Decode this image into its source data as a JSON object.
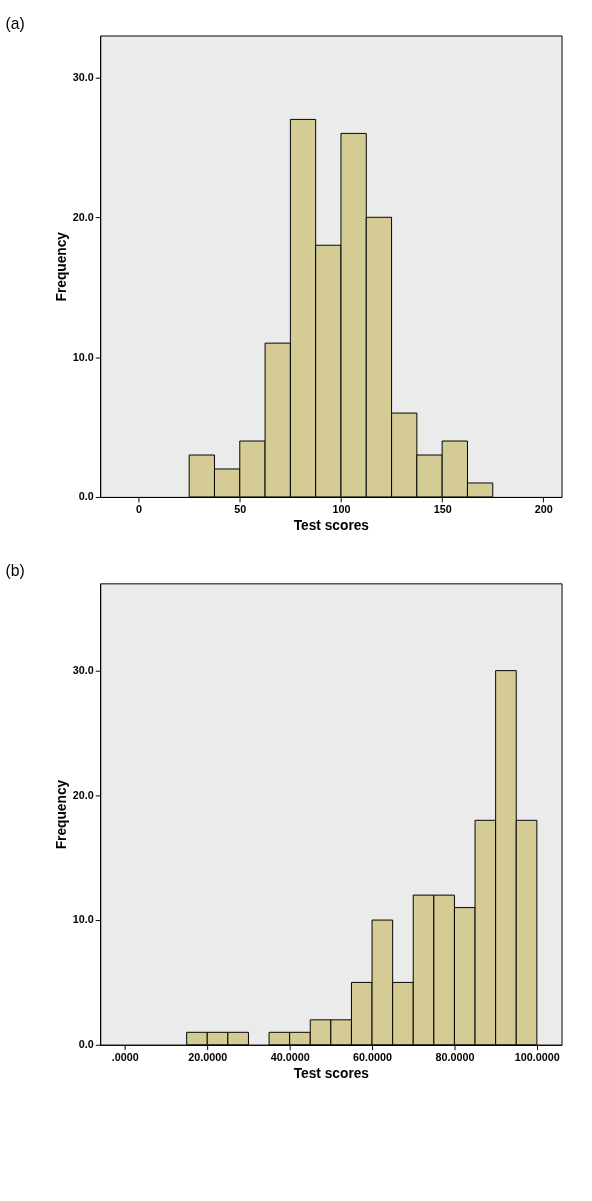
{
  "chart_data": [
    {
      "type": "histogram",
      "title": "(a)",
      "xlabel": "Test scores",
      "ylabel": "Frequency",
      "color": "#d4cc94",
      "grid": false,
      "bins": [
        25,
        37.5,
        50,
        62.5,
        75,
        87.5,
        100,
        112.5,
        125,
        137.5,
        150,
        162.5,
        175
      ],
      "values": [
        3,
        2,
        4,
        11,
        27,
        18,
        26,
        20,
        6,
        3,
        4,
        1
      ],
      "xlim": [
        -19,
        209
      ],
      "ylim": [
        0,
        33
      ],
      "xticks": [
        0,
        50,
        100,
        150,
        200
      ],
      "yticks": [
        {
          "value": 0,
          "label": "0.0"
        },
        {
          "value": 10,
          "label": "10.0"
        },
        {
          "value": 20,
          "label": "20.0"
        },
        {
          "value": 30,
          "label": "30.0"
        }
      ]
    },
    {
      "type": "histogram",
      "title": "(b)",
      "xlabel": "Test scores",
      "ylabel": "Frequency",
      "color": "#d4cc94",
      "grid": false,
      "bins": [
        15,
        20,
        25,
        30,
        35,
        40,
        45,
        50,
        55,
        60,
        65,
        70,
        75,
        80,
        85,
        90,
        95,
        100
      ],
      "values": [
        1,
        1,
        1,
        0,
        1,
        1,
        2,
        2,
        5,
        10,
        5,
        12,
        12,
        11,
        18,
        30,
        18
      ],
      "xlim": [
        -6,
        106
      ],
      "ylim": [
        0,
        37
      ],
      "xticks": [
        {
          "value": 0,
          "label": ".0000"
        },
        {
          "value": 20,
          "label": "20.0000"
        },
        {
          "value": 40,
          "label": "40.0000"
        },
        {
          "value": 60,
          "label": "60.0000"
        },
        {
          "value": 80,
          "label": "80.0000"
        },
        {
          "value": 100,
          "label": "100.0000"
        }
      ],
      "yticks": [
        {
          "value": 0,
          "label": "0.0"
        },
        {
          "value": 10,
          "label": "10.0"
        },
        {
          "value": 20,
          "label": "20.0"
        },
        {
          "value": 30,
          "label": "30.0"
        }
      ]
    }
  ]
}
